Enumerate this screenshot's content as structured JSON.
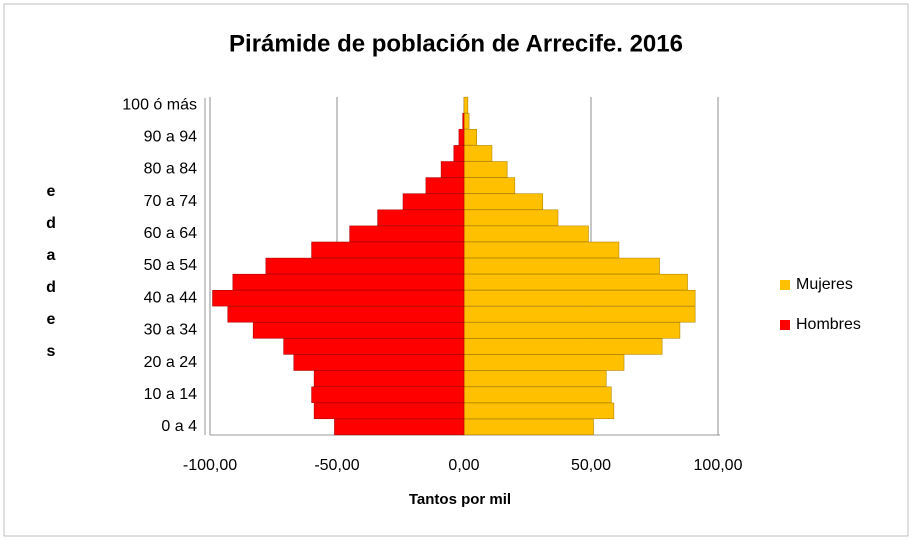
{
  "chart_data": {
    "type": "bar",
    "orientation": "horizontal",
    "stacked": true,
    "title": "Pirámide de población de Arrecife. 2016",
    "x_label": "Tantos por mil",
    "y_label": "edades",
    "categories": [
      "0 a 4",
      null,
      "10 a 14",
      null,
      "20 a 24",
      null,
      "30 a 34",
      null,
      "40 a 44",
      null,
      "50 a 54",
      null,
      "60 a 64",
      null,
      "70 a 74",
      null,
      "80 a 84",
      null,
      "90 a 94",
      null,
      "100 ó más"
    ],
    "series": [
      {
        "name": "Mujeres",
        "color": "#ffc000",
        "values": [
          51,
          59,
          58,
          56,
          63,
          78,
          85,
          91,
          91,
          88,
          77,
          61,
          49,
          37,
          31,
          20,
          17,
          11,
          5,
          2,
          1.5
        ]
      },
      {
        "name": "Hombres",
        "color": "#ff0000",
        "values": [
          -51,
          -59,
          -60,
          -59,
          -67,
          -71,
          -83,
          -93,
          -99,
          -91,
          -78,
          -60,
          -45,
          -34,
          -24,
          -15,
          -9,
          -4,
          -2,
          -0.5,
          0
        ]
      }
    ],
    "xlim": [
      -100,
      100
    ],
    "xticks": [
      {
        "value": -100,
        "label": "-100,00"
      },
      {
        "value": -50,
        "label": "-50,00"
      },
      {
        "value": 0,
        "label": "0,00"
      },
      {
        "value": 50,
        "label": "50,00"
      },
      {
        "value": 100,
        "label": "100,00"
      }
    ],
    "grid": true,
    "legend": "right"
  }
}
